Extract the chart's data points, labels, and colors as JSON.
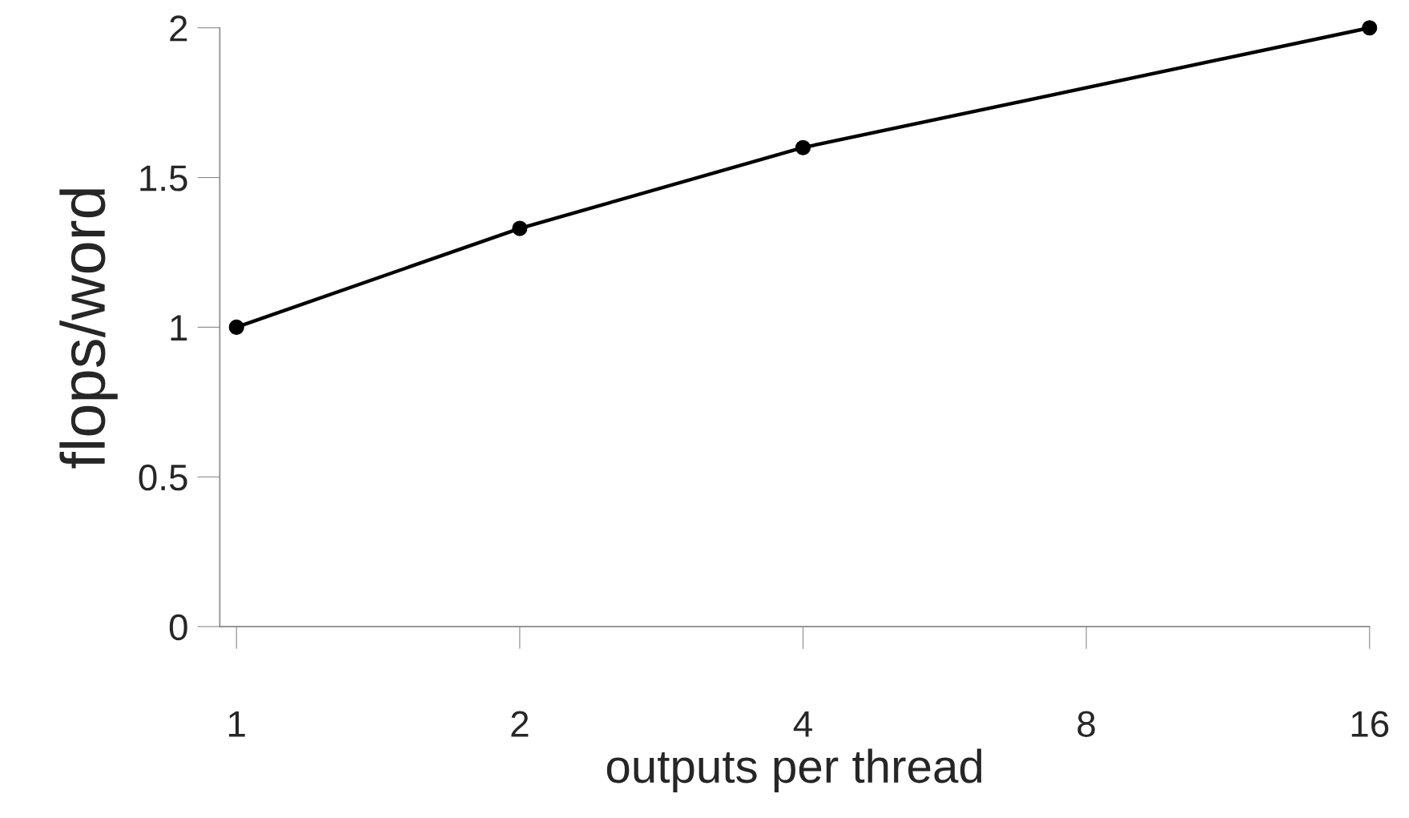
{
  "chart_data": {
    "type": "line",
    "xlabel": "outputs per thread",
    "ylabel": "flops/word",
    "x": [
      1,
      2,
      4,
      16
    ],
    "series": [
      {
        "color": "#000000",
        "values": [
          1,
          1.33,
          1.6,
          2
        ]
      }
    ],
    "log": "x",
    "xlim": [
      0.96,
      16
    ],
    "xticks": [
      1,
      2,
      4,
      8,
      16
    ],
    "ylim": [
      0,
      2
    ],
    "yticks": [
      0,
      0.5,
      1,
      1.5,
      2
    ],
    "marker": "circle",
    "line_style": "solid",
    "grid": false
  }
}
